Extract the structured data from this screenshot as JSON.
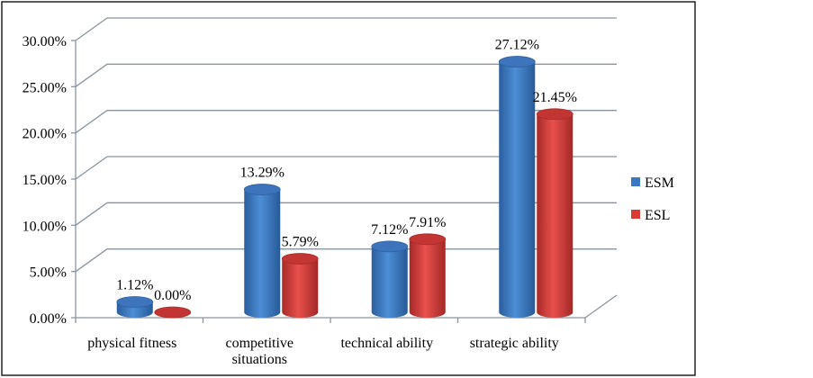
{
  "chart_data": {
    "type": "bar",
    "style": "3d-cylinder",
    "title": "",
    "xlabel": "",
    "ylabel": "",
    "categories": [
      [
        "physical fitness"
      ],
      [
        "competitive",
        "situations"
      ],
      [
        "technical ability"
      ],
      [
        "strategic ability"
      ]
    ],
    "series": [
      {
        "name": "ESM",
        "color": "#3b78c4",
        "values": [
          1.12,
          13.29,
          7.12,
          27.12
        ],
        "labels": [
          "1.12%",
          "13.29%",
          "7.12%",
          "27.12%"
        ]
      },
      {
        "name": "ESL",
        "color": "#d63b38",
        "values": [
          0.0,
          5.79,
          7.91,
          21.45
        ],
        "labels": [
          "0.00%",
          "5.79%",
          "7.91%",
          "21.45%"
        ]
      }
    ],
    "ylim": [
      0,
      30
    ],
    "yticks": [
      0,
      5,
      10,
      15,
      20,
      25,
      30
    ],
    "ytick_labels": [
      "0.00%",
      "5.00%",
      "10.00%",
      "15.00%",
      "20.00%",
      "25.00%",
      "30.00%"
    ],
    "grid": true,
    "legend": "right"
  }
}
